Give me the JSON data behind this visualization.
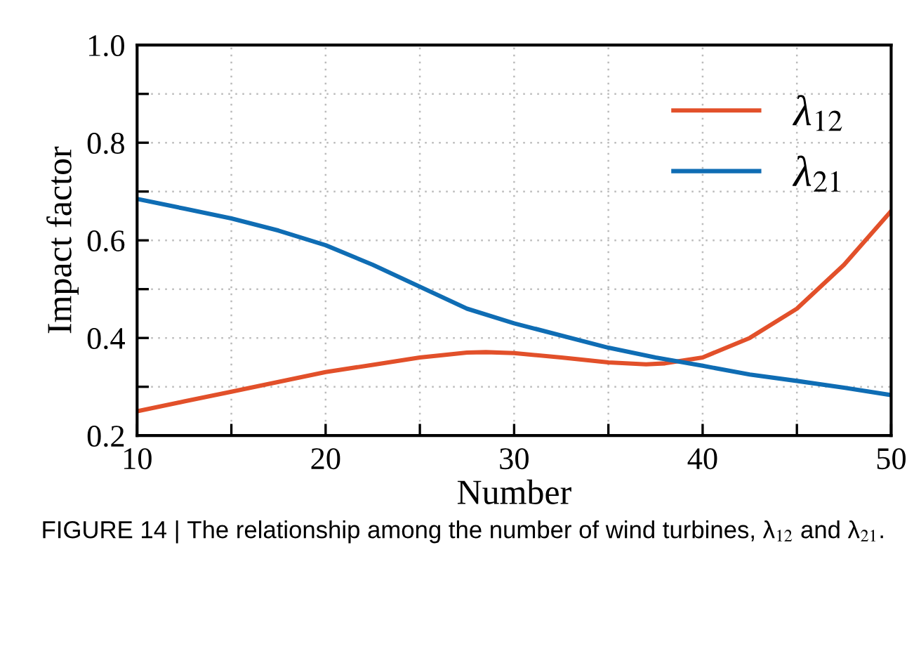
{
  "chart_data": {
    "type": "line",
    "xlabel": "Number",
    "ylabel": "Impact factor",
    "xlim": [
      10,
      50
    ],
    "ylim": [
      0.2,
      1.0
    ],
    "xticks": [
      10,
      {
        "value": 15,
        "label": null
      },
      20,
      {
        "value": 25,
        "label": null
      },
      30,
      {
        "value": 35,
        "label": null
      },
      40,
      {
        "value": 45,
        "label": null
      },
      50
    ],
    "yticks": [
      0.2,
      {
        "value": 0.3,
        "label": null
      },
      0.4,
      {
        "value": 0.5,
        "label": null
      },
      0.6,
      {
        "value": 0.7,
        "label": null
      },
      0.8,
      {
        "value": 0.9,
        "label": null
      },
      {
        "value": 1.0,
        "label": "1.0"
      }
    ],
    "grid": true,
    "legend": "top right",
    "line_style": "solid",
    "marker": "none",
    "x": [
      10,
      12.5,
      15,
      17.5,
      20,
      22.5,
      25,
      27.5,
      28.5,
      30,
      32.5,
      35,
      37,
      38,
      40,
      42.5,
      45,
      47.5,
      50
    ],
    "series": [
      {
        "name": "λ$_{12}$",
        "color": "#e2502a",
        "values": [
          0.25,
          0.27,
          0.29,
          0.31,
          0.33,
          0.345,
          0.36,
          0.37,
          0.371,
          0.369,
          0.36,
          0.35,
          0.346,
          0.348,
          0.36,
          0.4,
          0.46,
          0.55,
          0.66
        ]
      },
      {
        "name": "λ$_{21}$",
        "color": "#0f6db4",
        "x": [
          10,
          12.5,
          15,
          17.5,
          20,
          22.5,
          25,
          27.5,
          30,
          32.5,
          35,
          37.5,
          40,
          42.5,
          45,
          47.5,
          50
        ],
        "values": [
          0.685,
          0.665,
          0.645,
          0.62,
          0.59,
          0.55,
          0.505,
          0.46,
          0.43,
          0.405,
          0.38,
          0.36,
          0.343,
          0.325,
          0.312,
          0.298,
          0.283
        ]
      }
    ],
    "annotations": [
      "FIGURE 14 | The relationship among the number of wind turbines, λ$_{12}$ and λ$_{21}$."
    ]
  }
}
